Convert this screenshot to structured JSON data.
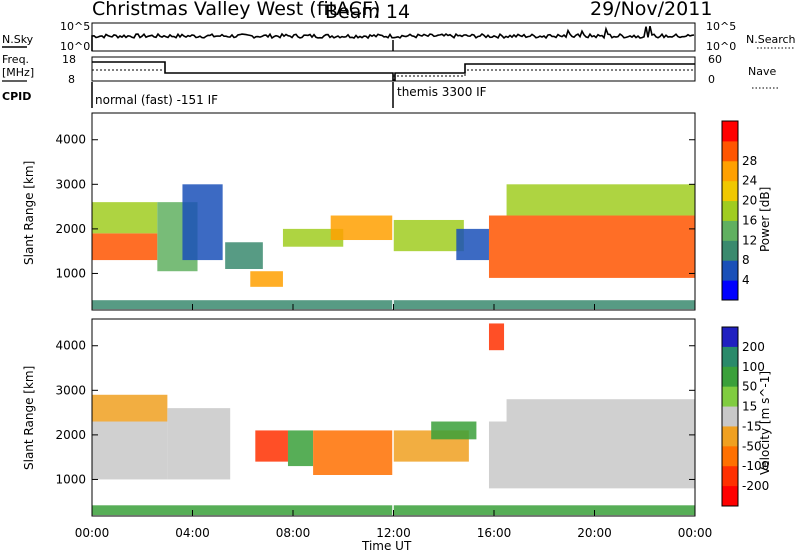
{
  "header": {
    "station": "Christmas Valley West (fitACF)",
    "beam": "Beam 14",
    "date": "29/Nov/2011"
  },
  "panels": {
    "nsky_label": "N.Sky",
    "nsearch_label": "N.Search",
    "nsky_ticks": [
      "10^5",
      "10^0"
    ],
    "nsearch_ticks": [
      "10^5",
      "10^0"
    ],
    "freq_label": "Freq.",
    "freq_unit": "[MHz]",
    "freq_ticks": [
      "18",
      "8"
    ],
    "nave_label": "Nave",
    "nave_ticks": [
      "60",
      "0"
    ],
    "cpid_label": "CPID",
    "cpid_modes": [
      "normal (fast) -151 IF",
      "themis 3300 IF"
    ]
  },
  "chart_data": [
    {
      "type": "heatmap",
      "title": "Power",
      "ylabel": "Slant Range [km]",
      "xlabel": "Time UT",
      "x_ticks": [
        "00:00",
        "04:00",
        "08:00",
        "12:00",
        "16:00",
        "20:00",
        "00:00"
      ],
      "y_ticks": [
        1000,
        2000,
        3000,
        4000
      ],
      "ylim": [
        180,
        4600
      ],
      "colorbar": {
        "label": "Power [dB]",
        "ticks": [
          4,
          8,
          12,
          16,
          20,
          24,
          28
        ],
        "colors": [
          "#0000ff",
          "#1a50b8",
          "#3a8a6e",
          "#60b060",
          "#a0cc20",
          "#f0c800",
          "#ffa000",
          "#ff5500",
          "#ff0000"
        ]
      },
      "regions": [
        {
          "t0": 0.0,
          "t1": 2.6,
          "r0": 1300,
          "r1": 1900,
          "level": 28
        },
        {
          "t0": 0.0,
          "t1": 2.6,
          "r0": 1900,
          "r1": 2600,
          "level": 18
        },
        {
          "t0": 2.6,
          "t1": 4.2,
          "r0": 1050,
          "r1": 2600,
          "level": 14
        },
        {
          "t0": 3.6,
          "t1": 5.2,
          "r0": 1300,
          "r1": 3000,
          "level": 6
        },
        {
          "t0": 5.3,
          "t1": 6.8,
          "r0": 1100,
          "r1": 1700,
          "level": 8
        },
        {
          "t0": 6.3,
          "t1": 7.6,
          "r0": 700,
          "r1": 1050,
          "level": 26
        },
        {
          "t0": 7.6,
          "t1": 10.0,
          "r0": 1600,
          "r1": 2000,
          "level": 18
        },
        {
          "t0": 9.5,
          "t1": 12.0,
          "r0": 1750,
          "r1": 2300,
          "level": 26
        },
        {
          "t0": 12.0,
          "t1": 14.8,
          "r0": 1500,
          "r1": 2200,
          "level": 16
        },
        {
          "t0": 14.5,
          "t1": 15.8,
          "r0": 1300,
          "r1": 2000,
          "level": 6
        },
        {
          "t0": 15.8,
          "t1": 24.0,
          "r0": 900,
          "r1": 2300,
          "level": 28
        },
        {
          "t0": 16.5,
          "t1": 24.0,
          "r0": 2300,
          "r1": 3000,
          "level": 18
        },
        {
          "t0": 0.0,
          "t1": 24.0,
          "r0": 200,
          "r1": 400,
          "level": 10
        }
      ]
    },
    {
      "type": "heatmap",
      "title": "Velocity",
      "ylabel": "Slant Range [km]",
      "xlabel": "Time UT",
      "x_ticks": [
        "00:00",
        "04:00",
        "08:00",
        "12:00",
        "16:00",
        "20:00",
        "00:00"
      ],
      "y_ticks": [
        1000,
        2000,
        3000,
        4000
      ],
      "ylim": [
        180,
        4600
      ],
      "colorbar": {
        "label": "Velocity [m s^-1]",
        "ticks": [
          200,
          100,
          50,
          15,
          -15,
          -50,
          -100,
          -200
        ],
        "colors": [
          "#2020c0",
          "#2a8a6a",
          "#3aa03a",
          "#80cc40",
          "#c8c8c8",
          "#f0a020",
          "#ff7000",
          "#ff3000",
          "#ff0000"
        ]
      },
      "regions": [
        {
          "t0": 0.0,
          "t1": 3.0,
          "r0": 1000,
          "r1": 2300,
          "level": 0
        },
        {
          "t0": 0.0,
          "t1": 3.0,
          "r0": 2300,
          "r1": 2900,
          "level": -30
        },
        {
          "t0": 3.0,
          "t1": 5.5,
          "r0": 1000,
          "r1": 2600,
          "level": 0
        },
        {
          "t0": 6.5,
          "t1": 7.8,
          "r0": 1400,
          "r1": 2100,
          "level": -150
        },
        {
          "t0": 7.8,
          "t1": 8.8,
          "r0": 1300,
          "r1": 2100,
          "level": 80
        },
        {
          "t0": 8.8,
          "t1": 12.0,
          "r0": 1100,
          "r1": 2100,
          "level": -60
        },
        {
          "t0": 12.0,
          "t1": 15.0,
          "r0": 1400,
          "r1": 2100,
          "level": -40
        },
        {
          "t0": 13.5,
          "t1": 15.3,
          "r0": 1900,
          "r1": 2300,
          "level": 60
        },
        {
          "t0": 15.8,
          "t1": 24.0,
          "r0": 800,
          "r1": 2300,
          "level": 0
        },
        {
          "t0": 16.5,
          "t1": 24.0,
          "r0": 2300,
          "r1": 2800,
          "level": 0
        },
        {
          "t0": 15.8,
          "t1": 16.4,
          "r0": 3900,
          "r1": 4500,
          "level": -200
        },
        {
          "t0": 0.0,
          "t1": 24.0,
          "r0": 200,
          "r1": 420,
          "level": 60
        }
      ]
    }
  ]
}
